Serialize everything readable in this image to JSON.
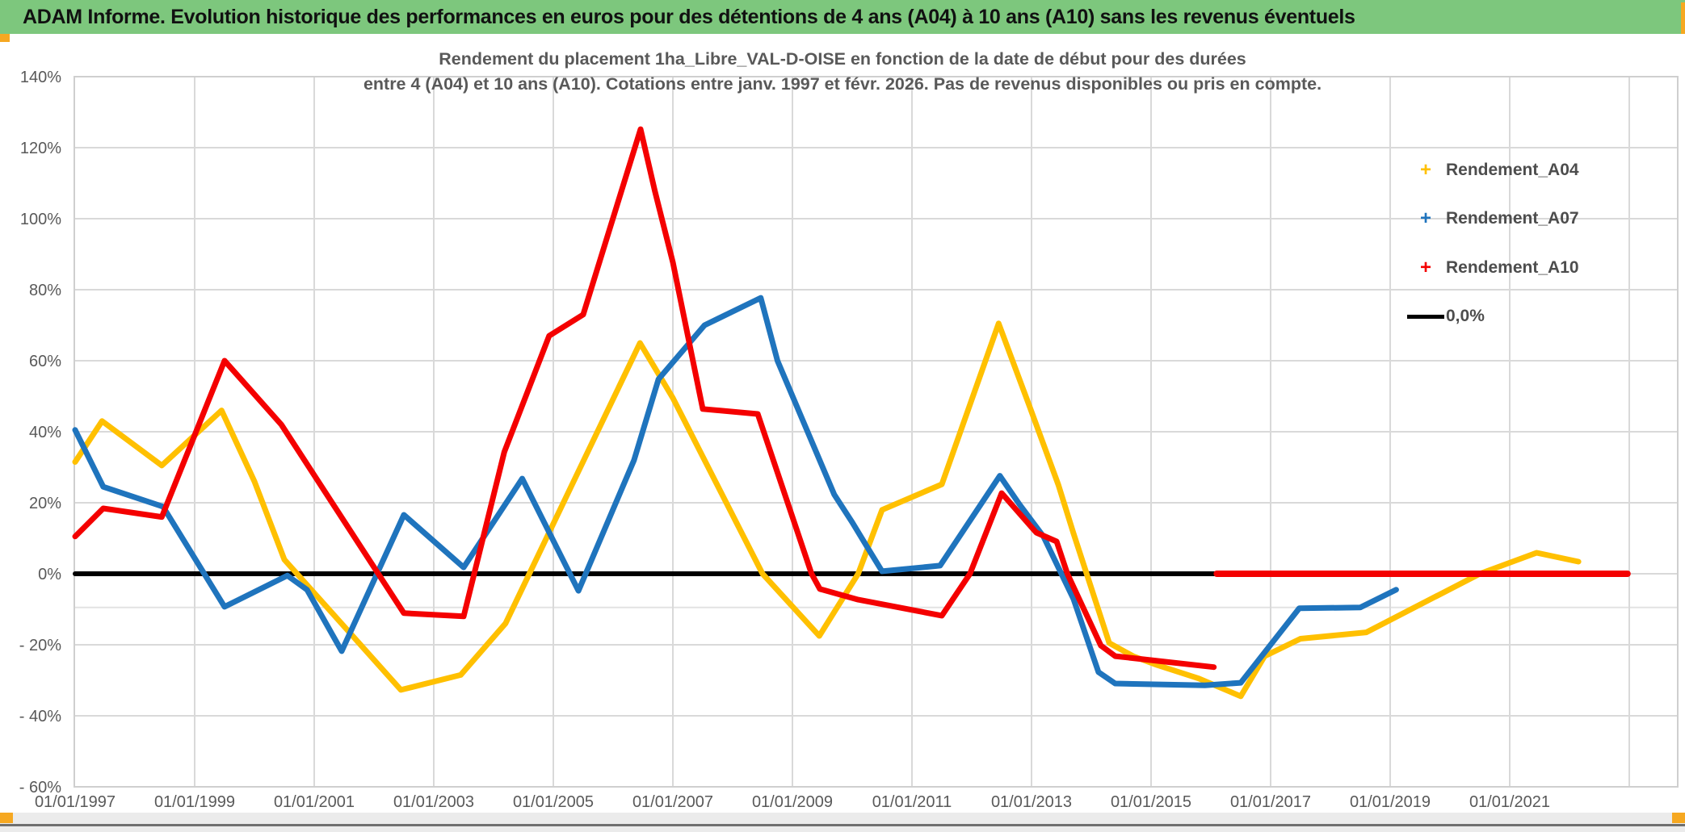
{
  "header": {
    "title": "ADAM Informe. Evolution historique des performances en euros pour des détentions de 4 ans (A04) à 10 ans (A10) sans les revenus éventuels",
    "background": "#7dc77d"
  },
  "chart_data": {
    "type": "line",
    "title_line1": "Rendement du placement 1ha_Libre_VAL-D-OISE en fonction de la date de début pour des durées",
    "title_line2": "entre 4 (A04) et 10 ans (A10). Cotations entre janv. 1997 et févr. 2026. Pas de revenus disponibles ou pris en compte.",
    "grid": true,
    "legend_position": "right",
    "x_axis": {
      "tick_labels": [
        "01/01/1997",
        "01/01/1999",
        "01/01/2001",
        "01/01/2003",
        "01/01/2005",
        "01/01/2007",
        "01/01/2009",
        "01/01/2011",
        "01/01/2013",
        "01/01/2015",
        "01/01/2017",
        "01/01/2019",
        "01/01/2021"
      ],
      "tick_years": [
        1997,
        1999,
        2001,
        2003,
        2005,
        2007,
        2009,
        2011,
        2013,
        2015,
        2017,
        2019,
        2021
      ],
      "gridline_years": [
        1999,
        2001,
        2003,
        2005,
        2007,
        2009,
        2011,
        2013,
        2015,
        2017,
        2019,
        2021,
        2023
      ],
      "min_year": 1997,
      "max_year": 2023.8
    },
    "y_axis": {
      "min": -60,
      "max": 140,
      "step": 20,
      "tick_labels": [
        "140%",
        "120%",
        "100%",
        "80%",
        "60%",
        "40%",
        "20%",
        "0%",
        "- 20%",
        "- 40%",
        "- 60%"
      ],
      "tick_values": [
        140,
        120,
        100,
        80,
        60,
        40,
        20,
        0,
        -20,
        -40,
        -60
      ],
      "minor_line_value": -9.5
    },
    "series": [
      {
        "name": "Rendement_A04",
        "color": "#FFC000",
        "marker": "+",
        "points": [
          [
            1997.0,
            31.5
          ],
          [
            1997.45,
            43
          ],
          [
            1998.45,
            30.5
          ],
          [
            1999.45,
            46
          ],
          [
            2000.0,
            26
          ],
          [
            2000.5,
            4
          ],
          [
            2002.45,
            -32.7
          ],
          [
            2003.45,
            -28.5
          ],
          [
            2004.2,
            -14
          ],
          [
            2006.45,
            65
          ],
          [
            2007.0,
            49.5
          ],
          [
            2008.5,
            0
          ],
          [
            2009.45,
            -17.5
          ],
          [
            2010.1,
            0
          ],
          [
            2010.5,
            18
          ],
          [
            2011.5,
            25.2
          ],
          [
            2012.45,
            70.5
          ],
          [
            2012.97,
            47
          ],
          [
            2013.45,
            25
          ],
          [
            2013.7,
            11.5
          ],
          [
            2014.3,
            -19.5
          ],
          [
            2014.7,
            -23.2
          ],
          [
            2015.1,
            -25.7
          ],
          [
            2015.8,
            -29.5
          ],
          [
            2016.5,
            -34.5
          ],
          [
            2016.9,
            -23.2
          ],
          [
            2017.5,
            -18.3
          ],
          [
            2018.6,
            -16.5
          ],
          [
            2020.5,
            0
          ],
          [
            2021.45,
            5.9
          ],
          [
            2022.15,
            3.4
          ]
        ]
      },
      {
        "name": "Rendement_A07",
        "color": "#1F74BD",
        "marker": "+",
        "points": [
          [
            1997.0,
            40.5
          ],
          [
            1997.47,
            24.5
          ],
          [
            1998.47,
            18.9
          ],
          [
            1999.5,
            -9.3
          ],
          [
            2000.55,
            -0.5
          ],
          [
            2000.88,
            -4.5
          ],
          [
            2001.46,
            -21.8
          ],
          [
            2002.5,
            16.6
          ],
          [
            2003.5,
            1.8
          ],
          [
            2004.48,
            26.8
          ],
          [
            2005.42,
            -4.8
          ],
          [
            2006.35,
            32
          ],
          [
            2006.76,
            54.8
          ],
          [
            2007.53,
            70
          ],
          [
            2008.47,
            77.7
          ],
          [
            2008.75,
            60
          ],
          [
            2009.7,
            22.3
          ],
          [
            2010.0,
            14.5
          ],
          [
            2010.27,
            7.0
          ],
          [
            2010.5,
            0.7
          ],
          [
            2011.47,
            2.3
          ],
          [
            2012.47,
            27.6
          ],
          [
            2012.8,
            19.5
          ],
          [
            2013.2,
            10.5
          ],
          [
            2013.7,
            -7
          ],
          [
            2014.12,
            -27.7
          ],
          [
            2014.4,
            -30.9
          ],
          [
            2015.9,
            -31.4
          ],
          [
            2016.5,
            -30.7
          ],
          [
            2017.48,
            -9.7
          ],
          [
            2018.5,
            -9.5
          ],
          [
            2019.1,
            -4.5
          ]
        ]
      },
      {
        "name": "Rendement_A10",
        "color": "#F40000",
        "marker": "+",
        "points": [
          [
            1997.0,
            10.5
          ],
          [
            1997.47,
            18.4
          ],
          [
            1998.45,
            16
          ],
          [
            1999.5,
            60
          ],
          [
            2000.45,
            42
          ],
          [
            2002.5,
            -11.1
          ],
          [
            2003.5,
            -12
          ],
          [
            2004.18,
            34.3
          ],
          [
            2004.93,
            67
          ],
          [
            2005.5,
            73
          ],
          [
            2006.46,
            125.2
          ],
          [
            2006.7,
            107.7
          ],
          [
            2007.0,
            87.7
          ],
          [
            2007.5,
            46.4
          ],
          [
            2008.42,
            45.0
          ],
          [
            2009.32,
            0
          ],
          [
            2009.46,
            -4.3
          ],
          [
            2010.1,
            -7.3
          ],
          [
            2011.5,
            -11.8
          ],
          [
            2011.97,
            0
          ],
          [
            2012.5,
            22.7
          ],
          [
            2013.08,
            11.6
          ],
          [
            2013.42,
            9.1
          ],
          [
            2013.6,
            0
          ],
          [
            2014.16,
            -20.2
          ],
          [
            2014.4,
            -23.2
          ],
          [
            2016.05,
            -26.3
          ]
        ],
        "points_flat_zero_segment": [
          [
            2016.1,
            0.0
          ],
          [
            2022.97,
            0.0
          ]
        ]
      }
    ],
    "zero_line": {
      "label": "0,0%",
      "color": "#000000",
      "points": [
        [
          1997.0,
          0.0
        ],
        [
          2016.1,
          0.0
        ]
      ]
    },
    "legend": [
      {
        "label": "Rendement_A04",
        "marker": "+",
        "color": "#FFC000"
      },
      {
        "label": "Rendement_A07",
        "marker": "+",
        "color": "#1F74BD"
      },
      {
        "label": "Rendement_A10",
        "marker": "+",
        "color": "#F40000"
      },
      {
        "label": "0,0%",
        "marker": "line",
        "color": "#000000"
      }
    ]
  },
  "colors": {
    "gridline": "#d9d9d9",
    "plot_border": "#cfcfcf",
    "axis_text": "#595959",
    "title_text": "#595959",
    "header_green": "#7dc77d",
    "corner_accent": "#f6a821"
  }
}
